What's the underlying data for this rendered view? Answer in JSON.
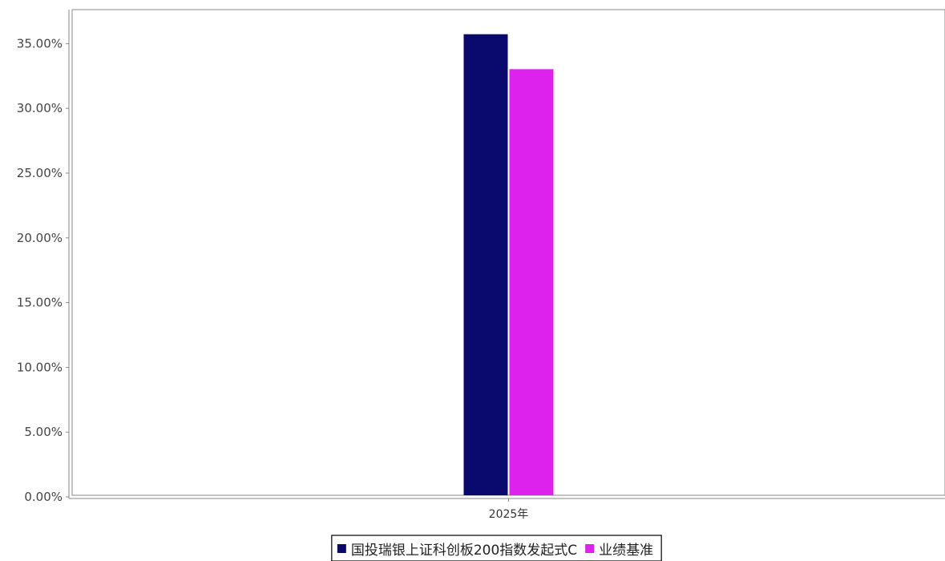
{
  "chart_data": {
    "type": "bar",
    "categories": [
      "2025年"
    ],
    "series": [
      {
        "name": "国投瑞银上证科创板200指数发起式C",
        "values": [
          35.6
        ],
        "color": "#0a0a6e"
      },
      {
        "name": "业绩基准",
        "values": [
          32.9
        ],
        "color": "#dd22ee"
      }
    ],
    "ylim": [
      0,
      37.5
    ],
    "yticks": [
      0,
      5,
      10,
      15,
      20,
      25,
      30,
      35
    ],
    "ytick_labels": [
      "0.00%",
      "5.00%",
      "10.00%",
      "15.00%",
      "20.00%",
      "25.00%",
      "30.00%",
      "35.00%"
    ],
    "grid": false,
    "legend_position": "bottom-center"
  }
}
